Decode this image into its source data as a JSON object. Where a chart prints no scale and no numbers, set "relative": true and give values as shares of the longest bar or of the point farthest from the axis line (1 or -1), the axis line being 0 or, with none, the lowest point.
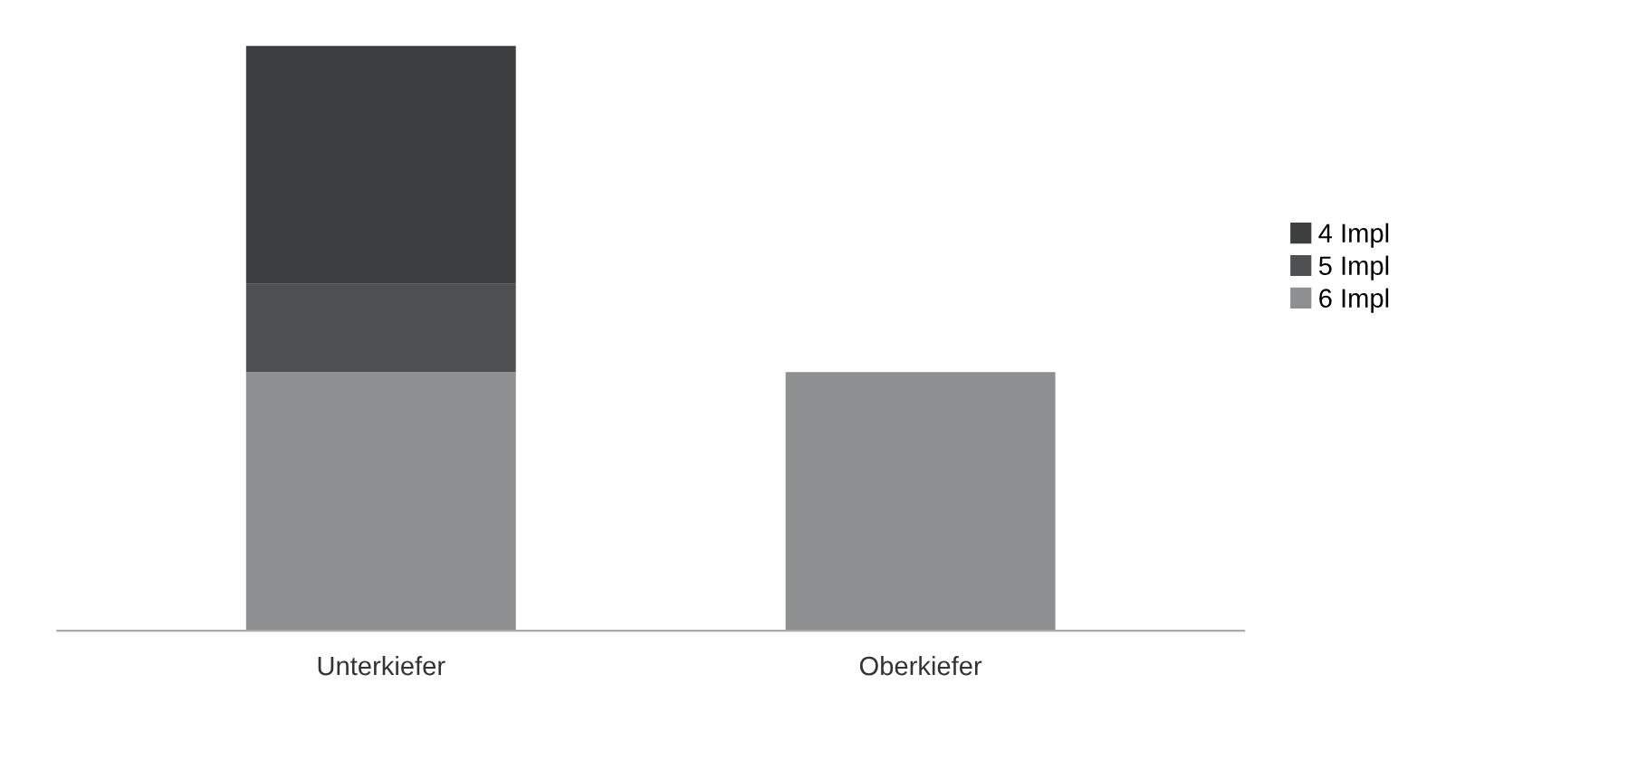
{
  "chart_data": {
    "type": "bar",
    "stacked": true,
    "relative": true,
    "categories": [
      "Unterkiefer",
      "Oberkiefer"
    ],
    "series": [
      {
        "name": "6 Impl",
        "color": "#8e8f91",
        "values": [
          0.442,
          0.442
        ]
      },
      {
        "name": "5 Impl",
        "color": "#4f5052",
        "values": [
          0.151,
          0
        ]
      },
      {
        "name": "4 Impl",
        "color": "#3d3e40",
        "values": [
          0.407,
          0
        ]
      }
    ],
    "legend": "right"
  }
}
